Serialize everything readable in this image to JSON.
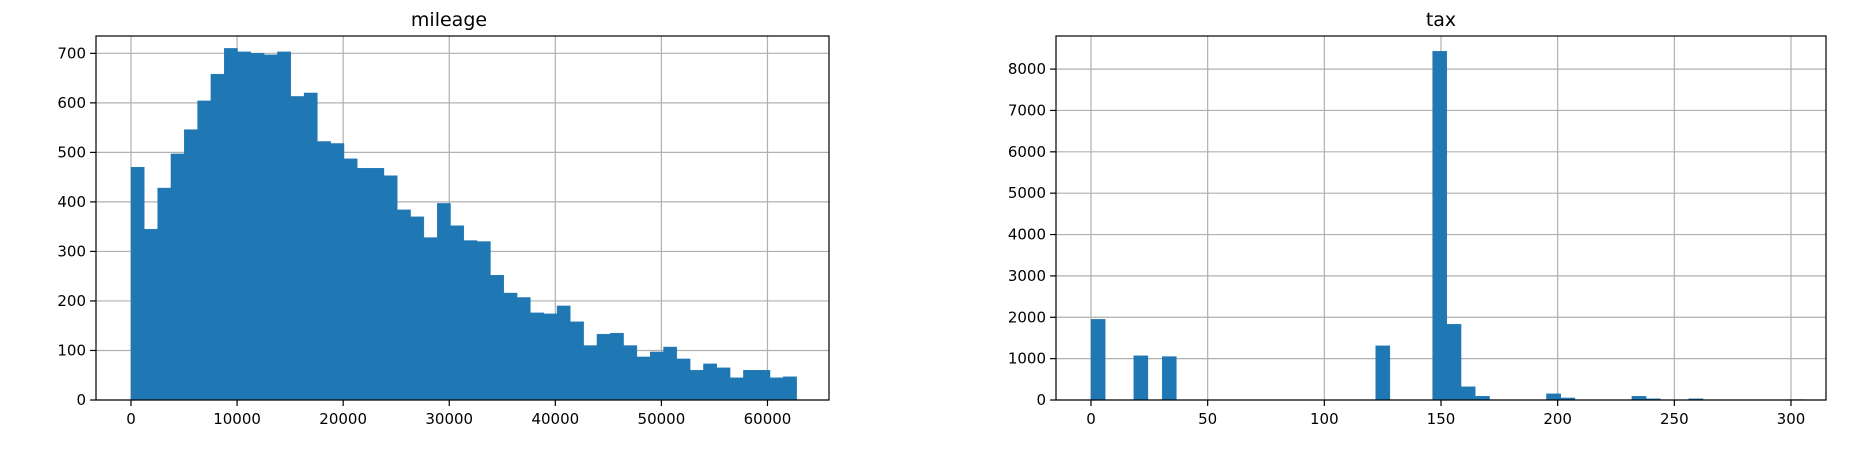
{
  "chart_data": [
    {
      "type": "bar",
      "title": "mileage",
      "xlabel": "",
      "ylabel": "",
      "grid": true,
      "xlim": [
        -3300,
        65800
      ],
      "ylim": [
        0,
        735
      ],
      "xticks": [
        0,
        10000,
        20000,
        30000,
        40000,
        50000,
        60000
      ],
      "yticks": [
        0,
        100,
        200,
        300,
        400,
        500,
        600,
        700
      ],
      "bin_start": 0,
      "bin_width": 1255,
      "color": "#1f77b4",
      "values": [
        470,
        345,
        428,
        497,
        546,
        604,
        658,
        710,
        703,
        700,
        697,
        703,
        613,
        620,
        522,
        518,
        487,
        468,
        468,
        453,
        384,
        370,
        328,
        397,
        352,
        322,
        320,
        252,
        216,
        207,
        176,
        174,
        190,
        158,
        110,
        133,
        135,
        110,
        87,
        97,
        107,
        83,
        60,
        73,
        65,
        45,
        60,
        60,
        45,
        47
      ]
    },
    {
      "type": "bar",
      "title": "tax",
      "xlabel": "",
      "ylabel": "",
      "grid": true,
      "xlim": [
        -15,
        315
      ],
      "ylim": [
        0,
        8800
      ],
      "xticks": [
        0,
        50,
        100,
        150,
        200,
        250,
        300
      ],
      "yticks": [
        0,
        1000,
        2000,
        3000,
        4000,
        5000,
        6000,
        7000,
        8000
      ],
      "bin_start": 0,
      "bin_width": 6.1,
      "color": "#1f77b4",
      "values": [
        1950,
        0,
        0,
        1070,
        0,
        1050,
        0,
        0,
        0,
        0,
        0,
        0,
        0,
        0,
        0,
        0,
        0,
        0,
        0,
        0,
        1310,
        0,
        0,
        0,
        8430,
        1830,
        320,
        90,
        0,
        0,
        0,
        0,
        150,
        50,
        0,
        0,
        0,
        0,
        90,
        30,
        0,
        0,
        30,
        0,
        0,
        0,
        0,
        0,
        0,
        10
      ]
    }
  ]
}
